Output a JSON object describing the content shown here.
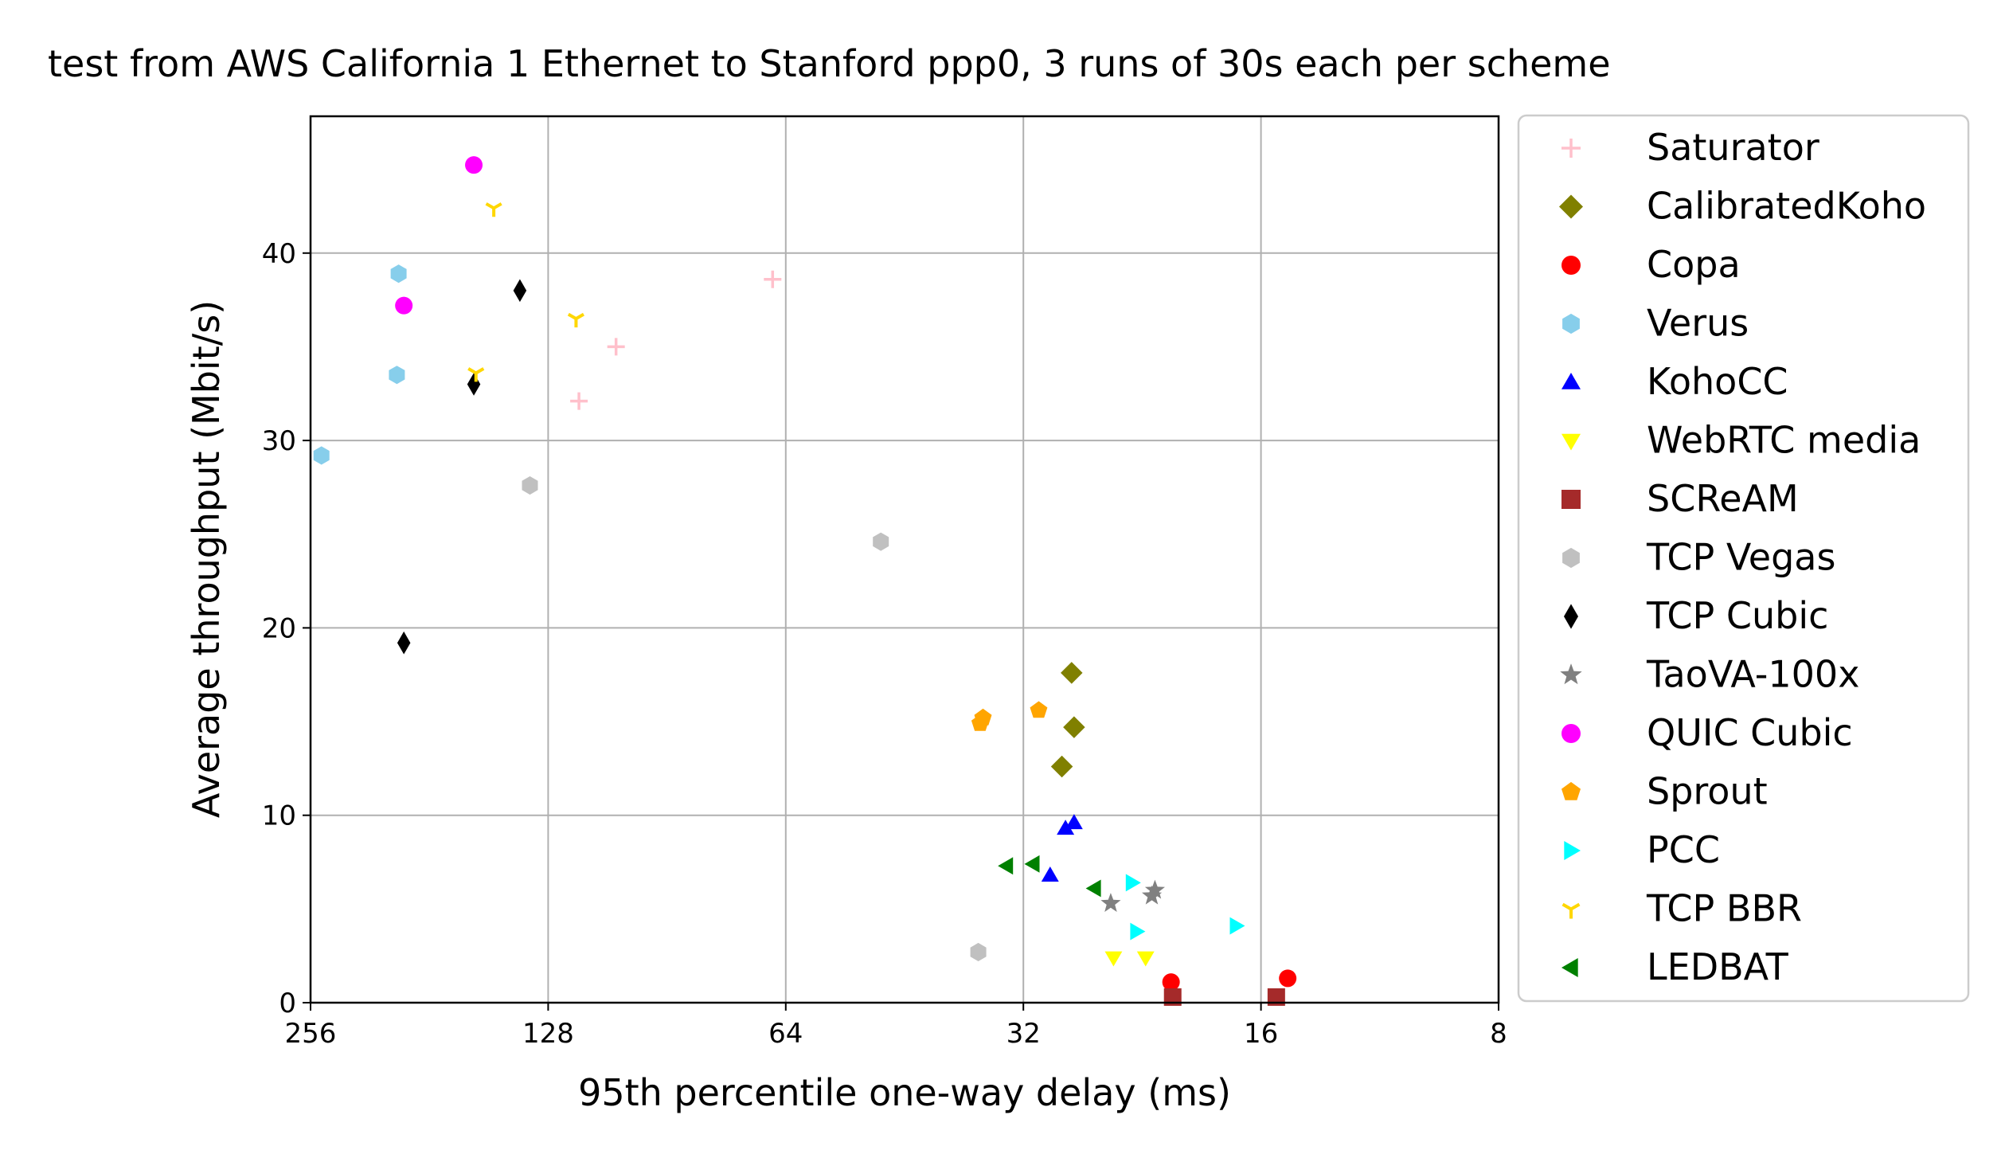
{
  "chart_data": {
    "type": "scatter",
    "title": "test from AWS California 1 Ethernet to Stanford ppp0, 3 runs of 30s each per scheme",
    "xlabel": "95th percentile one-way delay (ms)",
    "ylabel": "Average throughput (Mbit/s)",
    "x_scale": "log2",
    "x_reversed": true,
    "xlim": [
      256,
      8
    ],
    "ylim": [
      0,
      47.3
    ],
    "x_ticks": [
      256,
      128,
      64,
      32,
      16,
      8
    ],
    "x_tick_labels": [
      "256",
      "128",
      "64",
      "32",
      "16",
      "8"
    ],
    "y_ticks": [
      0,
      10,
      20,
      30,
      40
    ],
    "y_tick_labels": [
      "0",
      "10",
      "20",
      "30",
      "40"
    ],
    "grid": true,
    "legend_position": "outside-right",
    "series": [
      {
        "name": "Saturator",
        "marker": "plus",
        "color": "#ffc0cb",
        "points": [
          [
            66.5,
            38.6
          ],
          [
            105,
            35.0
          ],
          [
            117,
            32.1
          ]
        ]
      },
      {
        "name": "CalibratedKoho",
        "marker": "diamond",
        "color": "#808000",
        "points": [
          [
            27.8,
            17.6
          ],
          [
            27.6,
            14.7
          ],
          [
            28.6,
            12.6
          ]
        ]
      },
      {
        "name": "Copa",
        "marker": "circle",
        "color": "#ff0000",
        "points": [
          [
            20.8,
            1.1
          ],
          [
            14.8,
            1.3
          ]
        ]
      },
      {
        "name": "Verus",
        "marker": "hexagon",
        "color": "#87ceeb",
        "points": [
          [
            198,
            38.9
          ],
          [
            199,
            33.5
          ],
          [
            248,
            29.2
          ]
        ]
      },
      {
        "name": "KohoCC",
        "marker": "triangle-up",
        "color": "#0000ff",
        "points": [
          [
            28.3,
            9.3
          ],
          [
            27.6,
            9.6
          ],
          [
            29.6,
            6.8
          ]
        ]
      },
      {
        "name": "WebRTC media",
        "marker": "triangle-down",
        "color": "#ffff00",
        "points": [
          [
            24.6,
            2.4
          ],
          [
            22.4,
            2.4
          ]
        ]
      },
      {
        "name": "SCReAM",
        "marker": "square",
        "color": "#a52a2a",
        "points": [
          [
            20.7,
            0.3
          ],
          [
            15.3,
            0.3
          ]
        ]
      },
      {
        "name": "TCP Vegas",
        "marker": "hexagon",
        "color": "#c0c0c0",
        "points": [
          [
            135,
            27.6
          ],
          [
            48.5,
            24.6
          ],
          [
            36.5,
            2.7
          ]
        ]
      },
      {
        "name": "TCP Cubic",
        "marker": "thin-diamond",
        "color": "#000000",
        "points": [
          [
            139,
            38.0
          ],
          [
            159,
            33.0
          ],
          [
            195,
            19.2
          ]
        ]
      },
      {
        "name": "TaoVA-100x",
        "marker": "star",
        "color": "#808080",
        "points": [
          [
            24.8,
            5.3
          ],
          [
            21.8,
            6.0
          ],
          [
            22.0,
            5.7
          ]
        ]
      },
      {
        "name": "QUIC Cubic",
        "marker": "circle",
        "color": "#ff00ff",
        "points": [
          [
            159,
            44.7
          ],
          [
            195,
            37.2
          ]
        ]
      },
      {
        "name": "Sprout",
        "marker": "pentagon",
        "color": "#ffa500",
        "points": [
          [
            36.0,
            15.2
          ],
          [
            36.3,
            14.9
          ],
          [
            30.6,
            15.6
          ]
        ]
      },
      {
        "name": "PCC",
        "marker": "triangle-right",
        "color": "#00ffff",
        "points": [
          [
            23.3,
            6.4
          ],
          [
            23.0,
            3.8
          ],
          [
            17.2,
            4.1
          ]
        ]
      },
      {
        "name": "TCP BBR",
        "marker": "tri-down",
        "color": "#ffd700",
        "points": [
          [
            150,
            42.4
          ],
          [
            118,
            36.5
          ],
          [
            158,
            33.6
          ]
        ]
      },
      {
        "name": "LEDBAT",
        "marker": "triangle-left",
        "color": "#008000",
        "points": [
          [
            33.6,
            7.3
          ],
          [
            31.1,
            7.4
          ],
          [
            26.0,
            6.1
          ]
        ]
      }
    ]
  }
}
